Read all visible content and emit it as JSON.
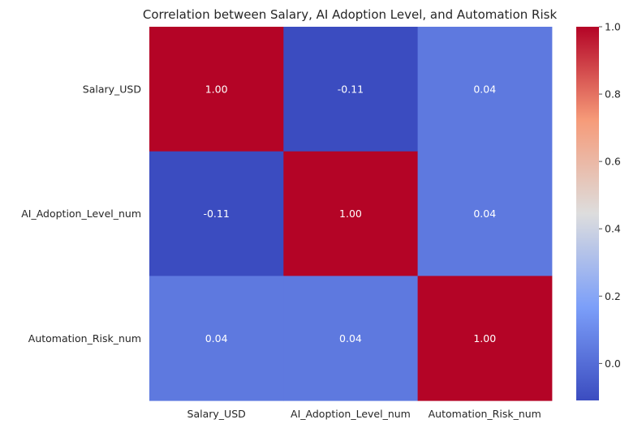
{
  "chart_data": {
    "type": "heatmap",
    "title": "Correlation between Salary, AI Adoption Level, and Automation Risk",
    "xlabel": "",
    "ylabel": "",
    "x_categories": [
      "Salary_USD",
      "AI_Adoption_Level_num",
      "Automation_Risk_num"
    ],
    "y_categories": [
      "Salary_USD",
      "AI_Adoption_Level_num",
      "Automation_Risk_num"
    ],
    "values": [
      [
        1.0,
        -0.11,
        0.04
      ],
      [
        -0.11,
        1.0,
        0.04
      ],
      [
        0.04,
        0.04,
        1.0
      ]
    ],
    "value_format": "0.00",
    "annotations": true,
    "colormap": "coolwarm",
    "colorbar": {
      "range": [
        -0.11,
        1.0
      ],
      "ticks": [
        "0.0",
        "0.2",
        "0.4",
        "0.6",
        "0.8",
        "1.0"
      ]
    },
    "grid": false
  }
}
